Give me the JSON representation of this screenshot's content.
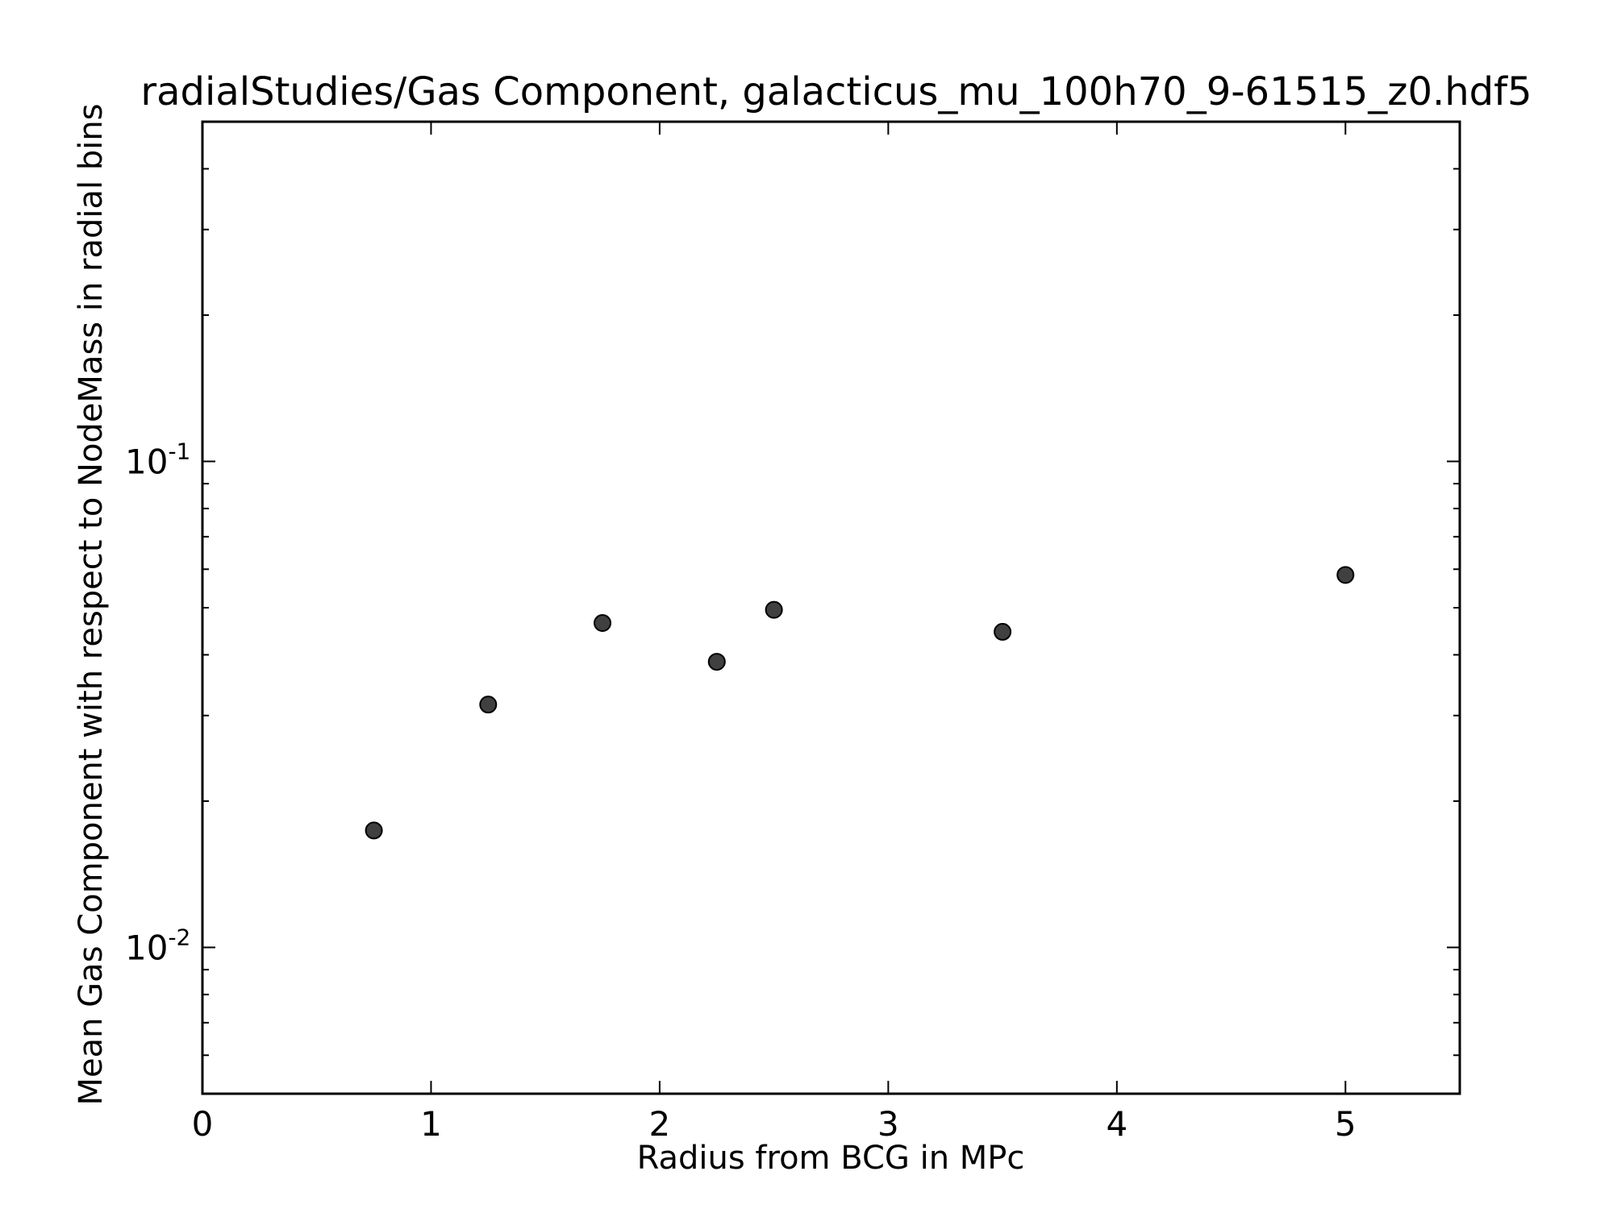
{
  "chart_data": {
    "type": "scatter",
    "title": "radialStudies/Gas Component, galacticus_mu_100h70_9-61515_z0.hdf5",
    "xlabel": "Radius from BCG in MPc",
    "ylabel": "Mean Gas Component with respect to NodeMass in radial bins",
    "xlim": [
      0,
      5.5
    ],
    "ylim": [
      0.005,
      0.5
    ],
    "yscale": "log",
    "grid": false,
    "x_ticks": [
      {
        "value": 0,
        "label": "0"
      },
      {
        "value": 1,
        "label": "1"
      },
      {
        "value": 2,
        "label": "2"
      },
      {
        "value": 3,
        "label": "3"
      },
      {
        "value": 4,
        "label": "4"
      },
      {
        "value": 5,
        "label": "5"
      }
    ],
    "y_ticks": [
      {
        "value": 0.01,
        "base": "10",
        "exp": "-2"
      },
      {
        "value": 0.1,
        "base": "10",
        "exp": "-1"
      }
    ],
    "series": [
      {
        "color": "#404040",
        "x": [
          0.75,
          1.25,
          1.75,
          2.25,
          2.5,
          3.5,
          5.0
        ],
        "y": [
          0.0174,
          0.0316,
          0.0465,
          0.0387,
          0.0495,
          0.0446,
          0.0584
        ]
      }
    ]
  }
}
